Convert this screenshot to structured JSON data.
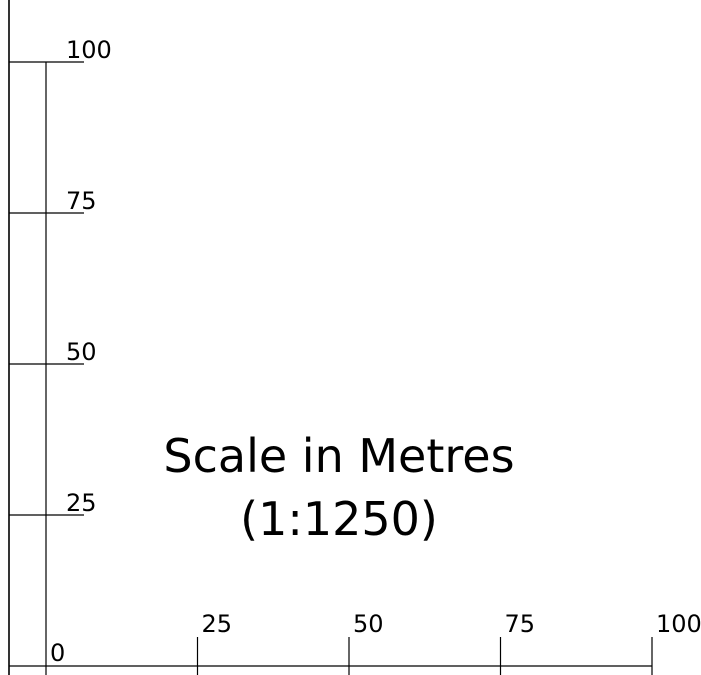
{
  "title": {
    "line1": "Scale in Metres",
    "line2": "(1:1250)"
  },
  "vertical_scale": {
    "ticks": [
      {
        "value": 25,
        "label": "25"
      },
      {
        "value": 50,
        "label": "50"
      },
      {
        "value": 75,
        "label": "75"
      },
      {
        "value": 100,
        "label": "100"
      }
    ]
  },
  "horizontal_scale": {
    "origin_label": "0",
    "ticks": [
      {
        "value": 25,
        "label": "25"
      },
      {
        "value": 50,
        "label": "50"
      },
      {
        "value": 75,
        "label": "75"
      },
      {
        "value": 100,
        "label": "100"
      }
    ]
  },
  "colors": {
    "line": "#000000",
    "background": "#ffffff"
  }
}
